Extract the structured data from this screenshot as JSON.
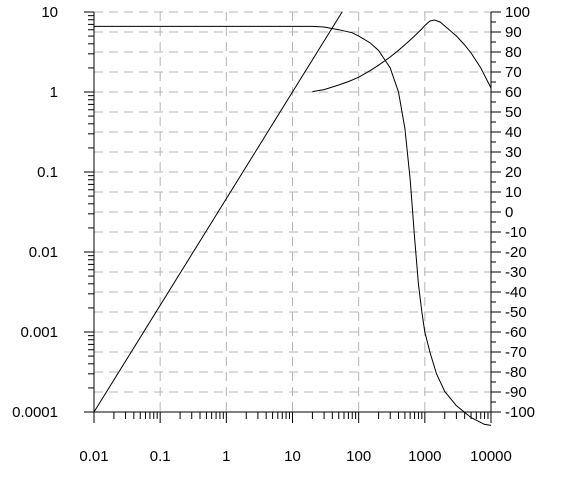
{
  "chart_data": {
    "type": "line",
    "title": "",
    "xlabel": "",
    "ylabel": "",
    "y2label": "",
    "x_scale": "log",
    "y_scale": "log",
    "y2_scale": "linear",
    "xlim": [
      0.01,
      10000
    ],
    "ylim": [
      0.0001,
      10
    ],
    "y2lim": [
      -100,
      100
    ],
    "grid": true,
    "legend": "none",
    "x_ticks": [
      "0.01",
      "0.1",
      "1",
      "10",
      "100",
      "1000",
      "10000"
    ],
    "y_ticks": [
      "0.0001",
      "0.001",
      "0.01",
      "0.1",
      "1",
      "10"
    ],
    "y2_ticks": [
      "100",
      "90",
      "80",
      "70",
      "60",
      "50",
      "40",
      "30",
      "20",
      "10",
      "0",
      "-10",
      "-20",
      "-30",
      "-40",
      "-50",
      "-60",
      "-70",
      "-80",
      "-90",
      "-100"
    ],
    "series": [
      {
        "axis": "left",
        "x": [
          0.01,
          10000
        ],
        "y": [
          0.0001,
          10000
        ]
      },
      {
        "axis": "left",
        "x": [
          0.01,
          0.1,
          1,
          10,
          20,
          30,
          50,
          80,
          100,
          150,
          200,
          300,
          400,
          500,
          600,
          700,
          800,
          900,
          1000,
          1200,
          1500,
          2000,
          3000,
          5000,
          8000,
          10000
        ],
        "y": [
          6.6,
          6.6,
          6.6,
          6.6,
          6.6,
          6.5,
          6.0,
          5.5,
          5.0,
          4.1,
          3.3,
          2.0,
          1.0,
          0.35,
          0.08,
          0.015,
          0.004,
          0.0018,
          0.001,
          0.00055,
          0.0003,
          0.00018,
          0.00012,
          8.5e-05,
          7e-05,
          6.8e-05
        ]
      },
      {
        "axis": "right",
        "x": [
          20,
          30,
          50,
          70,
          100,
          150,
          200,
          300,
          400,
          500,
          600,
          700,
          800,
          900,
          1000,
          1100,
          1200,
          1400,
          1700,
          2000,
          3000,
          4000,
          5000,
          7000,
          10000
        ],
        "y": [
          60.2,
          61.2,
          63.5,
          65.2,
          67.4,
          70.7,
          73.4,
          77.5,
          80.8,
          83.6,
          86.0,
          88.0,
          89.9,
          91.5,
          93.2,
          94.5,
          95.5,
          96.0,
          95.0,
          93.0,
          88.0,
          83.5,
          79.5,
          72.0,
          62.0
        ]
      }
    ]
  }
}
